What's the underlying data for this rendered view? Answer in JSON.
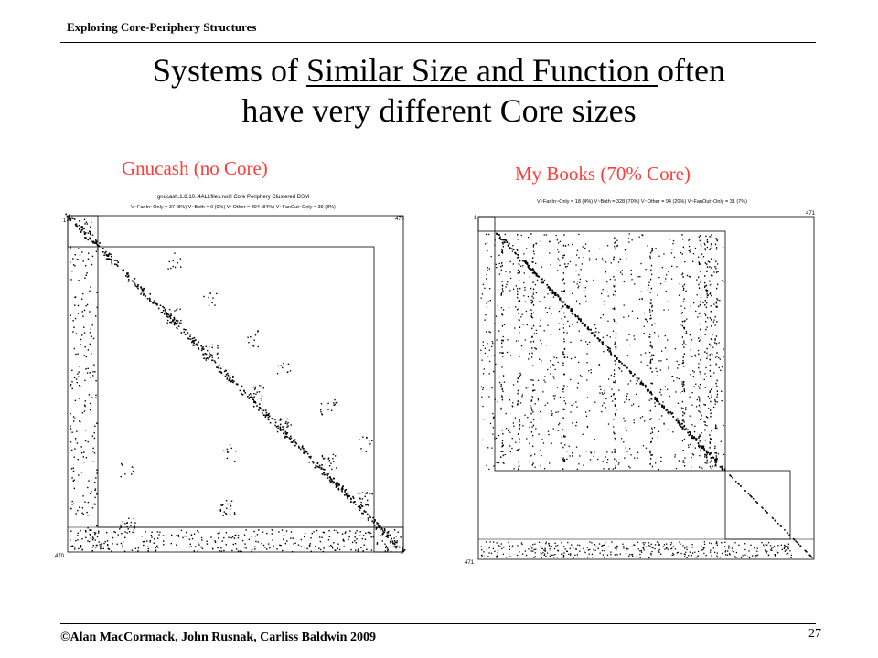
{
  "header": {
    "label": "Exploring Core-Periphery Structures"
  },
  "title": {
    "line1_before": "Systems of ",
    "line1_underlined": "Similar Size and Function ",
    "line1_after": "often",
    "line2": "have very different Core sizes"
  },
  "left_dsm": {
    "label": "Gnucash (no Core)",
    "caption_line1": "gnucash.1.8.10..4ALLfiles.noH Core Periphery Clustered DSM",
    "caption_line2": "V~FanIn~Only = 37 (8%) V~Both = 0 (0%) V~Other = 394 (84%) V~FanOut~Only = 39 (8%)",
    "size_label": "470",
    "start_label": "1"
  },
  "right_dsm": {
    "label": "My Books (70% Core)",
    "caption_line1": "V~FanIn~Only = 18 (4%) V~Both = 328 (70%) V~Other = 94 (20%) V~FanOut~Only = 31 (7%)",
    "size_label": "471",
    "start_label": "1"
  },
  "footer": {
    "copyright": "©Alan MacCormack, John Rusnak, Carliss Baldwin 2009",
    "page_number": "27"
  }
}
